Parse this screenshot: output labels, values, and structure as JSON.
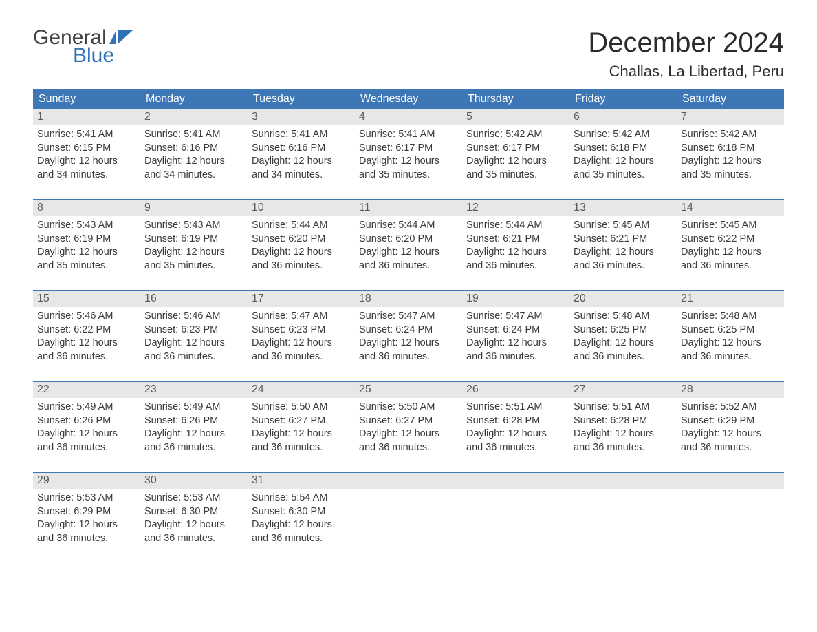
{
  "brand": {
    "word1": "General",
    "word2": "Blue",
    "text_color_word1": "#424242",
    "text_color_word2": "#2f72b6",
    "flag_color": "#2f72b6"
  },
  "header": {
    "month_title": "December 2024",
    "location": "Challas, La Libertad, Peru",
    "title_fontsize": 40,
    "location_fontsize": 22,
    "title_color": "#2b2b2b"
  },
  "calendar": {
    "type": "table",
    "header_bg": "#3d77b6",
    "header_text_color": "#ffffff",
    "row_divider_color": "#3d77b6",
    "daynum_bg": "#e7e7e7",
    "daynum_color": "#5a5a5a",
    "detail_text_color": "#3a3a3a",
    "detail_fontsize": 14.5,
    "day_names": [
      "Sunday",
      "Monday",
      "Tuesday",
      "Wednesday",
      "Thursday",
      "Friday",
      "Saturday"
    ],
    "labels": {
      "sunrise": "Sunrise: ",
      "sunset": "Sunset: ",
      "daylight_prefix": "Daylight: ",
      "daylight_hours_word": " hours",
      "daylight_and": "and ",
      "daylight_minutes_word": " minutes."
    },
    "weeks": [
      [
        {
          "day": "1",
          "sunrise": "5:41 AM",
          "sunset": "6:15 PM",
          "dl_h": "12",
          "dl_m": "34"
        },
        {
          "day": "2",
          "sunrise": "5:41 AM",
          "sunset": "6:16 PM",
          "dl_h": "12",
          "dl_m": "34"
        },
        {
          "day": "3",
          "sunrise": "5:41 AM",
          "sunset": "6:16 PM",
          "dl_h": "12",
          "dl_m": "34"
        },
        {
          "day": "4",
          "sunrise": "5:41 AM",
          "sunset": "6:17 PM",
          "dl_h": "12",
          "dl_m": "35"
        },
        {
          "day": "5",
          "sunrise": "5:42 AM",
          "sunset": "6:17 PM",
          "dl_h": "12",
          "dl_m": "35"
        },
        {
          "day": "6",
          "sunrise": "5:42 AM",
          "sunset": "6:18 PM",
          "dl_h": "12",
          "dl_m": "35"
        },
        {
          "day": "7",
          "sunrise": "5:42 AM",
          "sunset": "6:18 PM",
          "dl_h": "12",
          "dl_m": "35"
        }
      ],
      [
        {
          "day": "8",
          "sunrise": "5:43 AM",
          "sunset": "6:19 PM",
          "dl_h": "12",
          "dl_m": "35"
        },
        {
          "day": "9",
          "sunrise": "5:43 AM",
          "sunset": "6:19 PM",
          "dl_h": "12",
          "dl_m": "35"
        },
        {
          "day": "10",
          "sunrise": "5:44 AM",
          "sunset": "6:20 PM",
          "dl_h": "12",
          "dl_m": "36"
        },
        {
          "day": "11",
          "sunrise": "5:44 AM",
          "sunset": "6:20 PM",
          "dl_h": "12",
          "dl_m": "36"
        },
        {
          "day": "12",
          "sunrise": "5:44 AM",
          "sunset": "6:21 PM",
          "dl_h": "12",
          "dl_m": "36"
        },
        {
          "day": "13",
          "sunrise": "5:45 AM",
          "sunset": "6:21 PM",
          "dl_h": "12",
          "dl_m": "36"
        },
        {
          "day": "14",
          "sunrise": "5:45 AM",
          "sunset": "6:22 PM",
          "dl_h": "12",
          "dl_m": "36"
        }
      ],
      [
        {
          "day": "15",
          "sunrise": "5:46 AM",
          "sunset": "6:22 PM",
          "dl_h": "12",
          "dl_m": "36"
        },
        {
          "day": "16",
          "sunrise": "5:46 AM",
          "sunset": "6:23 PM",
          "dl_h": "12",
          "dl_m": "36"
        },
        {
          "day": "17",
          "sunrise": "5:47 AM",
          "sunset": "6:23 PM",
          "dl_h": "12",
          "dl_m": "36"
        },
        {
          "day": "18",
          "sunrise": "5:47 AM",
          "sunset": "6:24 PM",
          "dl_h": "12",
          "dl_m": "36"
        },
        {
          "day": "19",
          "sunrise": "5:47 AM",
          "sunset": "6:24 PM",
          "dl_h": "12",
          "dl_m": "36"
        },
        {
          "day": "20",
          "sunrise": "5:48 AM",
          "sunset": "6:25 PM",
          "dl_h": "12",
          "dl_m": "36"
        },
        {
          "day": "21",
          "sunrise": "5:48 AM",
          "sunset": "6:25 PM",
          "dl_h": "12",
          "dl_m": "36"
        }
      ],
      [
        {
          "day": "22",
          "sunrise": "5:49 AM",
          "sunset": "6:26 PM",
          "dl_h": "12",
          "dl_m": "36"
        },
        {
          "day": "23",
          "sunrise": "5:49 AM",
          "sunset": "6:26 PM",
          "dl_h": "12",
          "dl_m": "36"
        },
        {
          "day": "24",
          "sunrise": "5:50 AM",
          "sunset": "6:27 PM",
          "dl_h": "12",
          "dl_m": "36"
        },
        {
          "day": "25",
          "sunrise": "5:50 AM",
          "sunset": "6:27 PM",
          "dl_h": "12",
          "dl_m": "36"
        },
        {
          "day": "26",
          "sunrise": "5:51 AM",
          "sunset": "6:28 PM",
          "dl_h": "12",
          "dl_m": "36"
        },
        {
          "day": "27",
          "sunrise": "5:51 AM",
          "sunset": "6:28 PM",
          "dl_h": "12",
          "dl_m": "36"
        },
        {
          "day": "28",
          "sunrise": "5:52 AM",
          "sunset": "6:29 PM",
          "dl_h": "12",
          "dl_m": "36"
        }
      ],
      [
        {
          "day": "29",
          "sunrise": "5:53 AM",
          "sunset": "6:29 PM",
          "dl_h": "12",
          "dl_m": "36"
        },
        {
          "day": "30",
          "sunrise": "5:53 AM",
          "sunset": "6:30 PM",
          "dl_h": "12",
          "dl_m": "36"
        },
        {
          "day": "31",
          "sunrise": "5:54 AM",
          "sunset": "6:30 PM",
          "dl_h": "12",
          "dl_m": "36"
        },
        {
          "empty": true
        },
        {
          "empty": true
        },
        {
          "empty": true
        },
        {
          "empty": true
        }
      ]
    ]
  }
}
